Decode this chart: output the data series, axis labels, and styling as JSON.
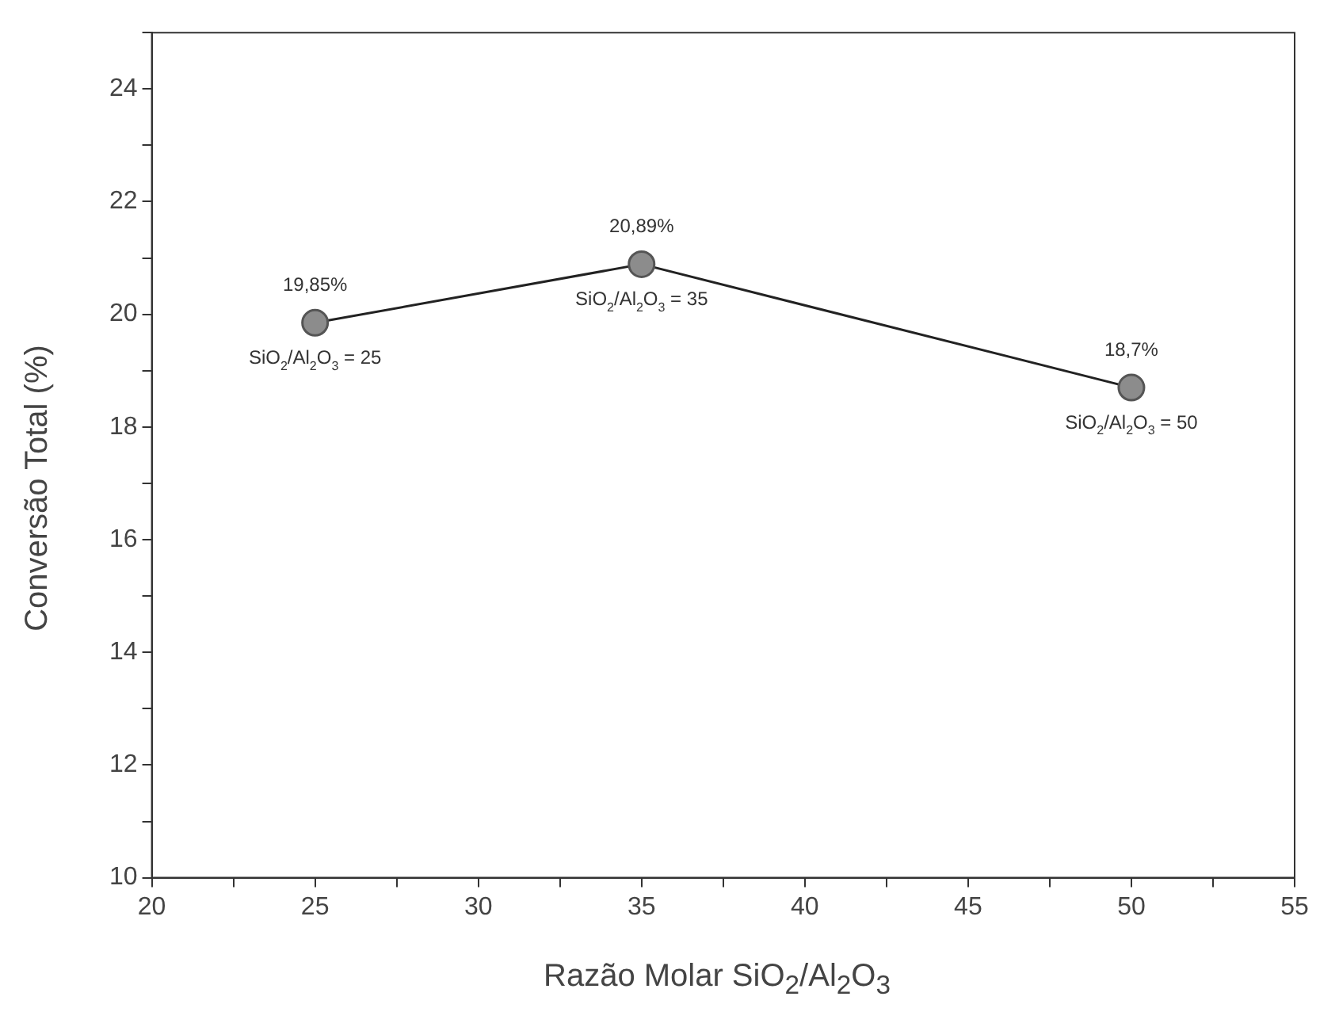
{
  "chart_data": {
    "type": "line",
    "xlabel": "Razão Molar SiO$_{2}$/Al$_{2}$O$_{3}$",
    "ylabel": "Conversão Total (%)",
    "x": [
      25,
      35,
      50
    ],
    "series": [
      {
        "color": "#8c8c8c",
        "values": [
          19.85,
          20.89,
          18.7
        ],
        "value_labels": [
          "19,85%",
          "20,89%",
          "18,7%"
        ]
      }
    ],
    "xlim": [
      20,
      55
    ],
    "xticks": [
      20,
      {
        "value": 22.5,
        "label": null
      },
      25,
      {
        "value": 27.5,
        "label": null
      },
      30,
      {
        "value": 32.5,
        "label": null
      },
      35,
      {
        "value": 37.5,
        "label": null
      },
      40,
      {
        "value": 42.5,
        "label": null
      },
      45,
      {
        "value": 47.5,
        "label": null
      },
      50,
      {
        "value": 52.5,
        "label": null
      },
      55
    ],
    "ylim": [
      10,
      25
    ],
    "yticks": [
      10,
      {
        "value": 11,
        "label": null
      },
      12,
      {
        "value": 13,
        "label": null
      },
      14,
      {
        "value": 15,
        "label": null
      },
      16,
      {
        "value": 17,
        "label": null
      },
      18,
      {
        "value": 19,
        "label": null
      },
      20,
      {
        "value": 21,
        "label": null
      },
      22,
      {
        "value": 23,
        "label": null
      },
      24,
      {
        "value": 25,
        "label": null
      }
    ],
    "grid": false,
    "legend": false,
    "marker": "circle",
    "line_style": "solid",
    "annotations": [
      {
        "text": "SiO$_{2}$/Al$_{2}$O$_{3}$ = 25",
        "x": 25,
        "y": 19.85
      },
      {
        "text": "SiO$_{2}$/Al$_{2}$O$_{3}$ = 35",
        "x": 35,
        "y": 20.89
      },
      {
        "text": "SiO$_{2}$/Al$_{2}$O$_{3}$ = 50",
        "x": 50,
        "y": 18.7
      }
    ]
  }
}
